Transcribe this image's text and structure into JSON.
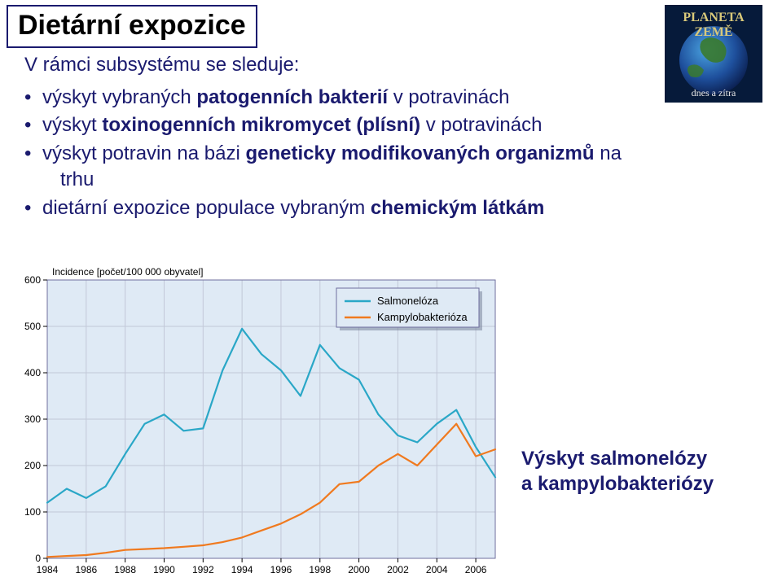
{
  "title": "Dietární expozice",
  "subtitle": "V rámci subsystému se sleduje:",
  "bullets": [
    {
      "prefix": "výskyt vybraných ",
      "bold": "patogenních bakterií",
      "suffix": " v potravinách"
    },
    {
      "prefix": "výskyt ",
      "bold": "toxinogenních mikromycet (plísní)",
      "suffix": " v potravinách"
    },
    {
      "prefix": "výskyt potravin na bázi ",
      "bold": "geneticky modifikovaných organizmů",
      "suffix": " na",
      "sub": "trhu"
    },
    {
      "prefix": "dietární expozice populace vybraným ",
      "bold": "chemickým látkám",
      "suffix": ""
    }
  ],
  "logo": {
    "line1": "PLANETA",
    "line2": "ZEMĚ",
    "line3": "dnes a zítra"
  },
  "caption_line1": "Výskyt salmonelózy",
  "caption_line2": "a kampylobakteriózy",
  "chart": {
    "type": "line",
    "ylabel": "Incidence [počet/100 000 obyvatel]",
    "x_years": [
      1984,
      1985,
      1986,
      1987,
      1988,
      1989,
      1990,
      1991,
      1992,
      1993,
      1994,
      1995,
      1996,
      1997,
      1998,
      1999,
      2000,
      2001,
      2002,
      2003,
      2004,
      2005,
      2006,
      2007
    ],
    "x_ticks": [
      1984,
      1986,
      1988,
      1990,
      1992,
      1994,
      1996,
      1998,
      2000,
      2002,
      2004,
      2006
    ],
    "y_ticks": [
      0,
      100,
      200,
      300,
      400,
      500,
      600
    ],
    "ylim": [
      0,
      600
    ],
    "xlim": [
      1984,
      2007
    ],
    "background_color": "#dfeaf5",
    "grid_color": "#c2c8d8",
    "plot_border_color": "#6f6f9e",
    "axis_text_color": "#000000",
    "series": [
      {
        "name": "Salmonelóza",
        "color": "#2aa7c7",
        "line_width": 2.2,
        "values": [
          120,
          150,
          130,
          155,
          225,
          290,
          310,
          275,
          280,
          405,
          495,
          440,
          405,
          350,
          460,
          410,
          385,
          310,
          265,
          250,
          290,
          320,
          240,
          175
        ]
      },
      {
        "name": "Kampylobakterióza",
        "color": "#f07a1f",
        "line_width": 2.2,
        "values": [
          3,
          5,
          7,
          12,
          18,
          20,
          22,
          25,
          28,
          35,
          45,
          60,
          75,
          95,
          120,
          160,
          165,
          200,
          225,
          200,
          245,
          290,
          220,
          235
        ]
      }
    ],
    "legend": {
      "bg": "#dfeaf5",
      "border": "#6f6f9e",
      "shadow": "#6f7a94",
      "items": [
        "Salmonelóza",
        "Kampylobakterióza"
      ]
    }
  }
}
